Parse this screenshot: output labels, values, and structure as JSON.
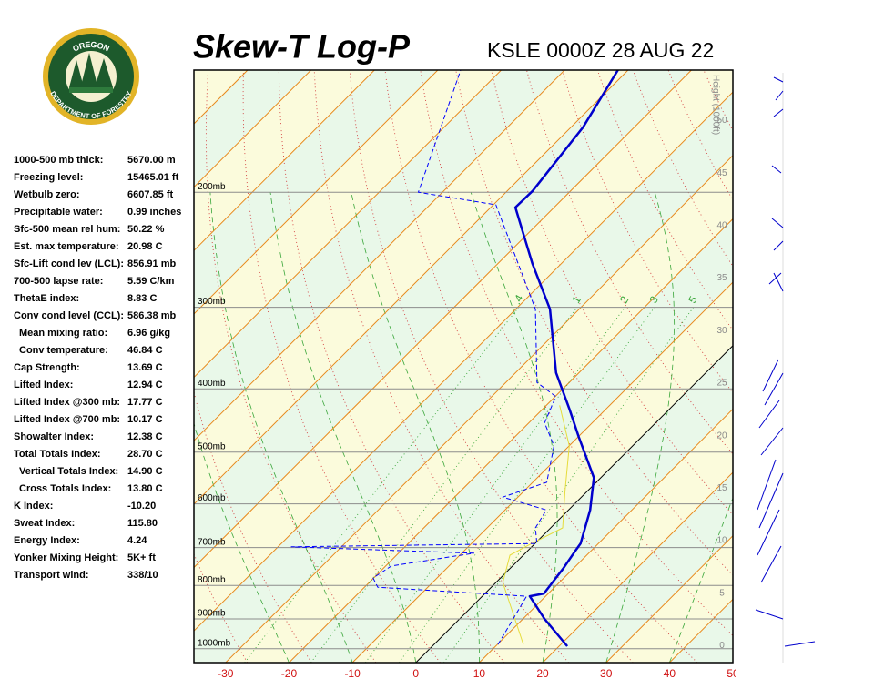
{
  "header": {
    "logo_top": "OREGON",
    "logo_bottom": "DEPARTMENT OF FORESTRY"
  },
  "stats": [
    {
      "label": "1000-500 mb thick:",
      "value": "5670.00 m"
    },
    {
      "label": "Freezing level:",
      "value": "15465.01 ft"
    },
    {
      "label": "Wetbulb zero:",
      "value": "6607.85 ft"
    },
    {
      "label": "Precipitable water:",
      "value": "0.99 inches"
    },
    {
      "label": "Sfc-500 mean rel hum:",
      "value": "50.22 %"
    },
    {
      "label": "Est. max temperature:",
      "value": "20.98 C"
    },
    {
      "label": "Sfc-Lift cond lev (LCL):",
      "value": "856.91 mb"
    },
    {
      "label": "700-500 lapse rate:",
      "value": "5.59 C/km"
    },
    {
      "label": "ThetaE index:",
      "value": "8.83 C"
    },
    {
      "label": "Conv cond level (CCL):",
      "value": "586.38 mb"
    },
    {
      "label": "Mean mixing ratio:",
      "value": "6.96 g/kg"
    },
    {
      "label": "Conv temperature:",
      "value": "46.84 C"
    },
    {
      "label": "Cap Strength:",
      "value": "13.69 C"
    },
    {
      "label": "Lifted Index:",
      "value": "12.94 C"
    },
    {
      "label": "Lifted Index @300 mb:",
      "value": "17.77 C"
    },
    {
      "label": "Lifted Index @700 mb:",
      "value": "10.17 C"
    },
    {
      "label": "Showalter Index:",
      "value": "12.38 C"
    },
    {
      "label": "Total Totals Index:",
      "value": "28.70 C"
    },
    {
      "label": "Vertical Totals Index:",
      "value": "14.90 C"
    },
    {
      "label": "Cross Totals Index:",
      "value": "13.80 C"
    },
    {
      "label": "K Index:",
      "value": "-10.20"
    },
    {
      "label": "Sweat Index:",
      "value": "115.80"
    },
    {
      "label": "Energy Index:",
      "value": "4.24"
    },
    {
      "label": "Yonker Mixing Height:",
      "value": "5K+ ft"
    },
    {
      "label": "Transport wind:",
      "value": "338/10"
    }
  ],
  "chart_data": {
    "type": "skewt",
    "title": "Skew-T Log-P",
    "subtitle": "KSLE 0000Z 28 AUG 22",
    "xlim": [
      -35,
      50
    ],
    "xticks": [
      -30,
      -20,
      -10,
      0,
      10,
      20,
      30,
      40,
      50
    ],
    "ylim": [
      1050,
      130
    ],
    "log_y": true,
    "yticks": [
      {
        "value": 1000,
        "label": "1000mb"
      },
      {
        "value": 900,
        "label": "900mb"
      },
      {
        "value": 800,
        "label": "800mb"
      },
      {
        "value": 700,
        "label": "700mb"
      },
      {
        "value": 600,
        "label": "600mb"
      },
      {
        "value": 500,
        "label": "500mb"
      },
      {
        "value": 400,
        "label": "400mb"
      },
      {
        "value": 300,
        "label": "300mb"
      },
      {
        "value": 200,
        "label": "200mb"
      }
    ],
    "y2_label": "Height (1000ft)",
    "y2lim": [
      -1.6,
      54.8
    ],
    "y2ticks": [
      0,
      5,
      10,
      15,
      20,
      25,
      30,
      35,
      40,
      45,
      50
    ],
    "mixing_ratios": [
      {
        "value": 0.4,
        "label": ".4"
      },
      1,
      2,
      3,
      5
    ],
    "series": [
      {
        "color": "#0000cc",
        "style": "thick",
        "pressure": [
          991,
          900,
          831,
          823,
          754,
          707,
          690,
          613,
          547,
          474,
          430,
          378,
          302,
          257,
          211,
          199,
          159,
          130
        ],
        "values": [
          21.3,
          13.4,
          7.5,
          9.3,
          8.4,
          7.5,
          7.2,
          3.4,
          -1.1,
          -9.9,
          -15.7,
          -23.6,
          -34.6,
          -44.6,
          -56.1,
          -56.0,
          -58.1,
          -61.6
        ]
      },
      {
        "color": "#0000ff",
        "style": "dashed",
        "pressure": [
          985,
          831,
          805,
          779,
          747,
          714,
          698,
          690,
          653,
          613,
          586,
          556,
          489,
          451,
          411,
          391,
          302,
          209,
          200,
          130
        ],
        "values": [
          10.1,
          7.0,
          -17.9,
          -20.1,
          -19.1,
          -8.1,
          -37.9,
          0.3,
          -2.4,
          -3.5,
          -12.4,
          -7.8,
          -12.4,
          -17.5,
          -19.9,
          -25.1,
          -36.9,
          -59.6,
          -73.8,
          -86.4
        ]
      },
      {
        "color": "#e6dc3c",
        "style": "thin",
        "pressure": [
          985,
          792,
          719,
          696,
          653,
          574,
          489,
          424
        ],
        "values": [
          14.1,
          1.1,
          -2.1,
          -0.9,
          1.9,
          -3.5,
          -10.0,
          -17.9
        ]
      }
    ]
  }
}
